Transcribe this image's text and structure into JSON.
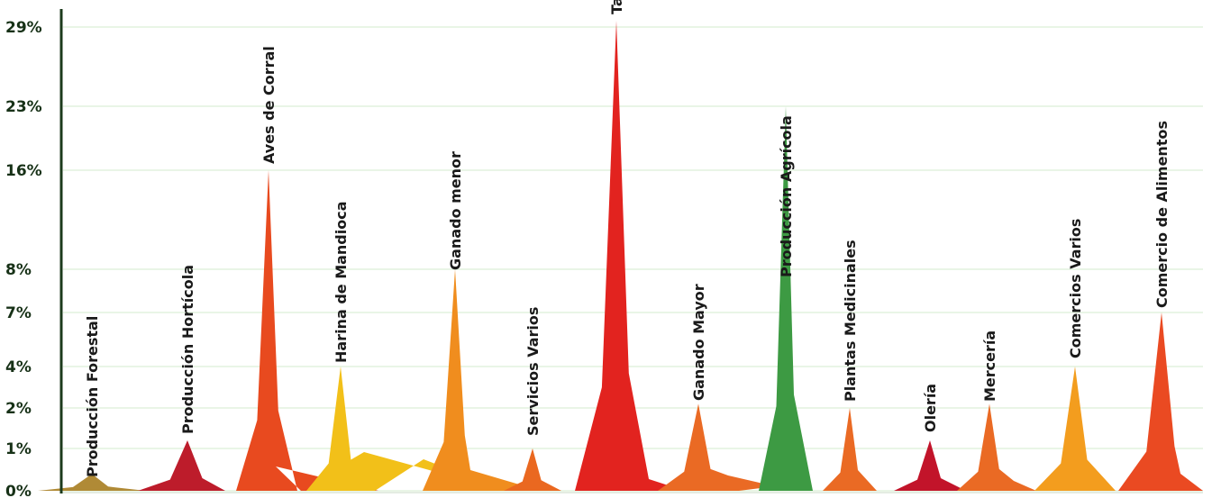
{
  "chart_data": {
    "type": "area",
    "title": "",
    "xlabel": "",
    "ylabel": "",
    "y_ticks": [
      {
        "value": 0,
        "label": "0%"
      },
      {
        "value": 1,
        "label": "1%"
      },
      {
        "value": 2,
        "label": "2%"
      },
      {
        "value": 4,
        "label": "4%"
      },
      {
        "value": 7,
        "label": "7%"
      },
      {
        "value": 8,
        "label": "8%"
      },
      {
        "value": 16,
        "label": "16%"
      },
      {
        "value": 23,
        "label": "23%"
      },
      {
        "value": 29,
        "label": "29%"
      }
    ],
    "ylim": [
      0,
      30
    ],
    "grid": true,
    "categories": [
      "Producción Forestal",
      "Producción Hortícola",
      "Aves de Corral",
      "Harina de Mandioca",
      "Ganado menor",
      "Servicios Varios",
      "Tambo",
      "Ganado Mayor",
      "Producción Agrícola",
      "Plantas Medicinales",
      "Olería",
      "Mercería",
      "Comercios Varios",
      "Comercio de Alimentos"
    ],
    "values": [
      0.4,
      1.2,
      16,
      4,
      8,
      1,
      29.5,
      2.2,
      23,
      2,
      1.2,
      2.2,
      4,
      7
    ],
    "colors": [
      "#b08a36",
      "#bd1c2b",
      "#e84a1f",
      "#f2c019",
      "#f08d1e",
      "#ea6820",
      "#e2231f",
      "#ea6a24",
      "#3d9a43",
      "#ea6a24",
      "#c2142a",
      "#ea6a24",
      "#f39d1e",
      "#ea4a22"
    ]
  }
}
